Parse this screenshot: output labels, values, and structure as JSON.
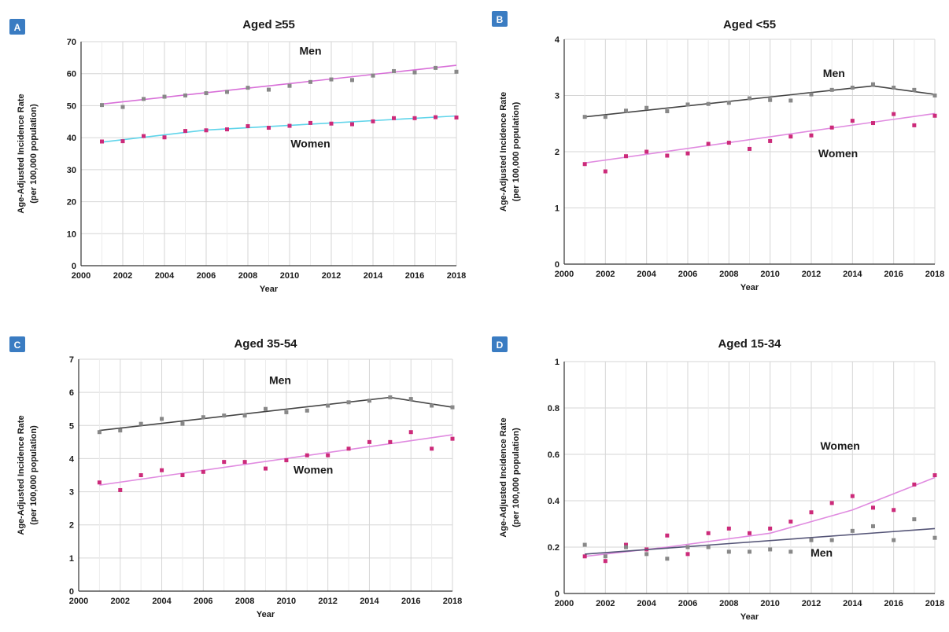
{
  "chart_data": [
    {
      "type": "scatter",
      "panel_label": "A",
      "title": "Aged ≥55",
      "xlabel": "Year",
      "ylabel_lines": [
        "Age-Adjusted Incidence Rate",
        "(per 100,000 population)"
      ],
      "xlim": [
        2000,
        2018
      ],
      "ylim": [
        0,
        70
      ],
      "xticks": [
        2000,
        2002,
        2004,
        2006,
        2008,
        2010,
        2012,
        2014,
        2016,
        2018
      ],
      "yticks": [
        0,
        10,
        20,
        30,
        40,
        50,
        60,
        70
      ],
      "grid": true,
      "x": [
        2001,
        2002,
        2003,
        2004,
        2005,
        2006,
        2007,
        2008,
        2009,
        2010,
        2011,
        2012,
        2013,
        2014,
        2015,
        2016,
        2017,
        2018
      ],
      "series": [
        {
          "name": "Men",
          "label_at": [
            2011,
            66
          ],
          "marker_color": "#888888",
          "values": [
            50.2,
            49.6,
            52.1,
            52.8,
            53.2,
            53.9,
            54.3,
            55.6,
            55.0,
            56.2,
            57.4,
            58.2,
            58.0,
            59.4,
            60.8,
            60.4,
            61.8,
            60.6
          ],
          "trend": [
            [
              2001,
              50.5
            ],
            [
              2018,
              62.6
            ]
          ],
          "trend_color": "#d86fd8"
        },
        {
          "name": "Women",
          "label_at": [
            2011,
            37
          ],
          "marker_color": "#cc2a7a",
          "values": [
            38.8,
            38.9,
            40.5,
            40.1,
            42.1,
            42.3,
            42.6,
            43.6,
            43.1,
            43.7,
            44.6,
            44.4,
            44.2,
            45.1,
            46.1,
            46.1,
            46.4,
            46.3
          ],
          "trend": [
            [
              2001,
              38.6
            ],
            [
              2006,
              42.4
            ],
            [
              2018,
              46.8
            ]
          ],
          "trend_color": "#5fd4ea"
        }
      ]
    },
    {
      "type": "scatter",
      "panel_label": "B",
      "title": "Aged <55",
      "xlabel": "Year",
      "ylabel_lines": [
        "Age-Adjusted Incidence Rate",
        "(per 100,000 population)"
      ],
      "xlim": [
        2000,
        2018
      ],
      "ylim": [
        0,
        4
      ],
      "xticks": [
        2000,
        2002,
        2004,
        2006,
        2008,
        2010,
        2012,
        2014,
        2016,
        2018
      ],
      "yticks": [
        0,
        1,
        2,
        3,
        4
      ],
      "grid": true,
      "x": [
        2001,
        2002,
        2003,
        2004,
        2005,
        2006,
        2007,
        2008,
        2009,
        2010,
        2011,
        2012,
        2013,
        2014,
        2015,
        2016,
        2017,
        2018
      ],
      "series": [
        {
          "name": "Men",
          "label_at": [
            2013.1,
            3.33
          ],
          "marker_color": "#888888",
          "values": [
            2.62,
            2.62,
            2.73,
            2.78,
            2.72,
            2.84,
            2.85,
            2.87,
            2.95,
            2.92,
            2.91,
            3.02,
            3.1,
            3.14,
            3.2,
            3.14,
            3.1,
            3.0
          ],
          "trend": [
            [
              2001,
              2.62
            ],
            [
              2015,
              3.17
            ],
            [
              2018,
              3.02
            ]
          ],
          "trend_color": "#444444"
        },
        {
          "name": "Women",
          "label_at": [
            2013.3,
            1.9
          ],
          "marker_color": "#cc2a7a",
          "values": [
            1.78,
            1.65,
            1.92,
            2.0,
            1.93,
            1.97,
            2.14,
            2.16,
            2.05,
            2.19,
            2.27,
            2.29,
            2.43,
            2.55,
            2.51,
            2.67,
            2.47,
            2.64
          ],
          "trend": [
            [
              2001,
              1.8
            ],
            [
              2018,
              2.68
            ]
          ],
          "trend_color": "#e08be0"
        }
      ]
    },
    {
      "type": "scatter",
      "panel_label": "C",
      "title": "Aged 35-54",
      "xlabel": "Year",
      "ylabel_lines": [
        "Age-Adjusted Incidence Rate",
        "(per 100,000 population)"
      ],
      "xlim": [
        2000,
        2018
      ],
      "ylim": [
        0,
        7
      ],
      "xticks": [
        2000,
        2002,
        2004,
        2006,
        2008,
        2010,
        2012,
        2014,
        2016,
        2018
      ],
      "yticks": [
        0,
        1,
        2,
        3,
        4,
        5,
        6,
        7
      ],
      "grid": true,
      "x": [
        2001,
        2002,
        2003,
        2004,
        2005,
        2006,
        2007,
        2008,
        2009,
        2010,
        2011,
        2012,
        2013,
        2014,
        2015,
        2016,
        2017,
        2018
      ],
      "series": [
        {
          "name": "Men",
          "label_at": [
            2009.7,
            6.25
          ],
          "marker_color": "#888888",
          "values": [
            4.8,
            4.85,
            5.05,
            5.2,
            5.05,
            5.25,
            5.3,
            5.3,
            5.5,
            5.4,
            5.45,
            5.6,
            5.7,
            5.75,
            5.85,
            5.8,
            5.6,
            5.55
          ],
          "trend": [
            [
              2001,
              4.85
            ],
            [
              2015,
              5.85
            ],
            [
              2018,
              5.55
            ]
          ],
          "trend_color": "#444444"
        },
        {
          "name": "Women",
          "label_at": [
            2011.3,
            3.55
          ],
          "marker_color": "#cc2a7a",
          "values": [
            3.28,
            3.05,
            3.5,
            3.65,
            3.5,
            3.6,
            3.9,
            3.9,
            3.7,
            3.95,
            4.1,
            4.1,
            4.3,
            4.5,
            4.5,
            4.8,
            4.3,
            4.6
          ],
          "trend": [
            [
              2001,
              3.2
            ],
            [
              2018,
              4.72
            ]
          ],
          "trend_color": "#e08be0"
        }
      ]
    },
    {
      "type": "scatter",
      "panel_label": "D",
      "title": "Aged 15-34",
      "xlabel": "Year",
      "ylabel_lines": [
        "Age-Adjusted Incidence Rate",
        "(per 100,000 population)"
      ],
      "xlim": [
        2000,
        2018
      ],
      "ylim": [
        0,
        1
      ],
      "xticks": [
        2000,
        2002,
        2004,
        2006,
        2008,
        2010,
        2012,
        2014,
        2016,
        2018
      ],
      "yticks": [
        0,
        0.2,
        0.4,
        0.6,
        0.8,
        1
      ],
      "ytick_labels": [
        "0",
        "0.2",
        "0.4",
        "0.6",
        "0.8",
        "1"
      ],
      "grid": true,
      "x": [
        2001,
        2002,
        2003,
        2004,
        2005,
        2006,
        2007,
        2008,
        2009,
        2010,
        2011,
        2012,
        2013,
        2014,
        2015,
        2016,
        2017,
        2018
      ],
      "series": [
        {
          "name": "Women",
          "label_at": [
            2013.4,
            0.62
          ],
          "marker_color": "#cc2a7a",
          "values": [
            0.16,
            0.14,
            0.21,
            0.19,
            0.25,
            0.17,
            0.26,
            0.28,
            0.26,
            0.28,
            0.31,
            0.35,
            0.39,
            0.42,
            0.37,
            0.36,
            0.47,
            0.51
          ],
          "trend": [
            [
              2001,
              0.16
            ],
            [
              2005,
              0.2
            ],
            [
              2010,
              0.26
            ],
            [
              2014,
              0.36
            ],
            [
              2018,
              0.5
            ]
          ],
          "trend_color": "#e08be0"
        },
        {
          "name": "Men",
          "label_at": [
            2012.5,
            0.16
          ],
          "marker_color": "#888888",
          "values": [
            0.21,
            0.16,
            0.2,
            0.17,
            0.15,
            0.2,
            0.2,
            0.18,
            0.18,
            0.19,
            0.18,
            0.23,
            0.23,
            0.27,
            0.29,
            0.23,
            0.32,
            0.24
          ],
          "trend": [
            [
              2001,
              0.17
            ],
            [
              2018,
              0.28
            ]
          ],
          "trend_color": "#555577"
        }
      ]
    }
  ],
  "colors": {
    "badge": "#3a7cc2",
    "grid": "#d6d6d6"
  }
}
